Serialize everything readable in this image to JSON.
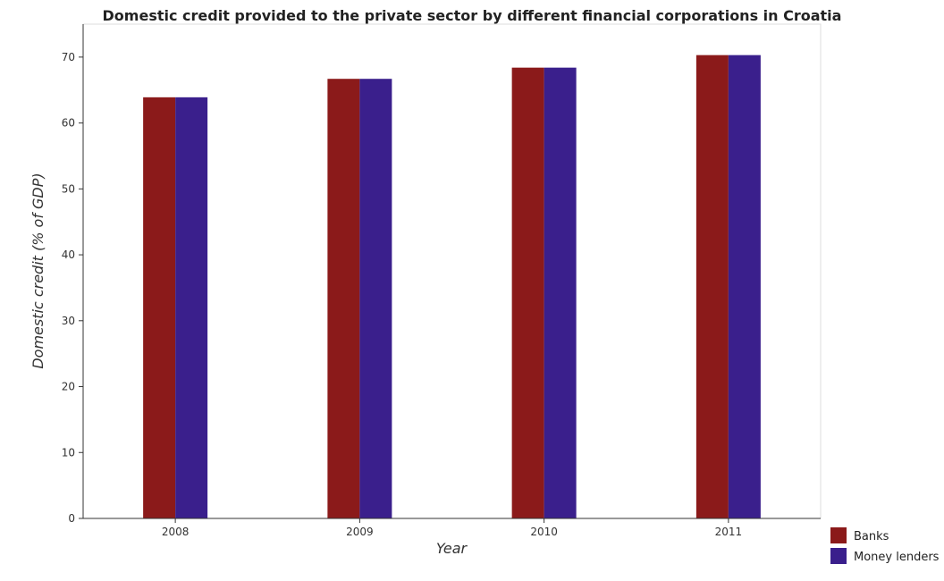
{
  "chart_data": {
    "type": "bar",
    "title": "Domestic credit provided to the private sector by different financial corporations in Croatia",
    "xlabel": "Year",
    "ylabel": "Domestic credit (% of GDP)",
    "categories": [
      "2008",
      "2009",
      "2010",
      "2011"
    ],
    "series": [
      {
        "name": "Banks",
        "color": "#8b1a1a",
        "values": [
          63.9,
          66.7,
          68.4,
          70.3
        ]
      },
      {
        "name": "Money lenders",
        "color": "#3a1f8c",
        "values": [
          63.9,
          66.7,
          68.4,
          70.3
        ]
      }
    ],
    "ylim": [
      0,
      75
    ],
    "yticks": [
      "0",
      "10",
      "20",
      "30",
      "40",
      "50",
      "60",
      "70"
    ],
    "grid": false,
    "legend_position": "bottom-right"
  }
}
